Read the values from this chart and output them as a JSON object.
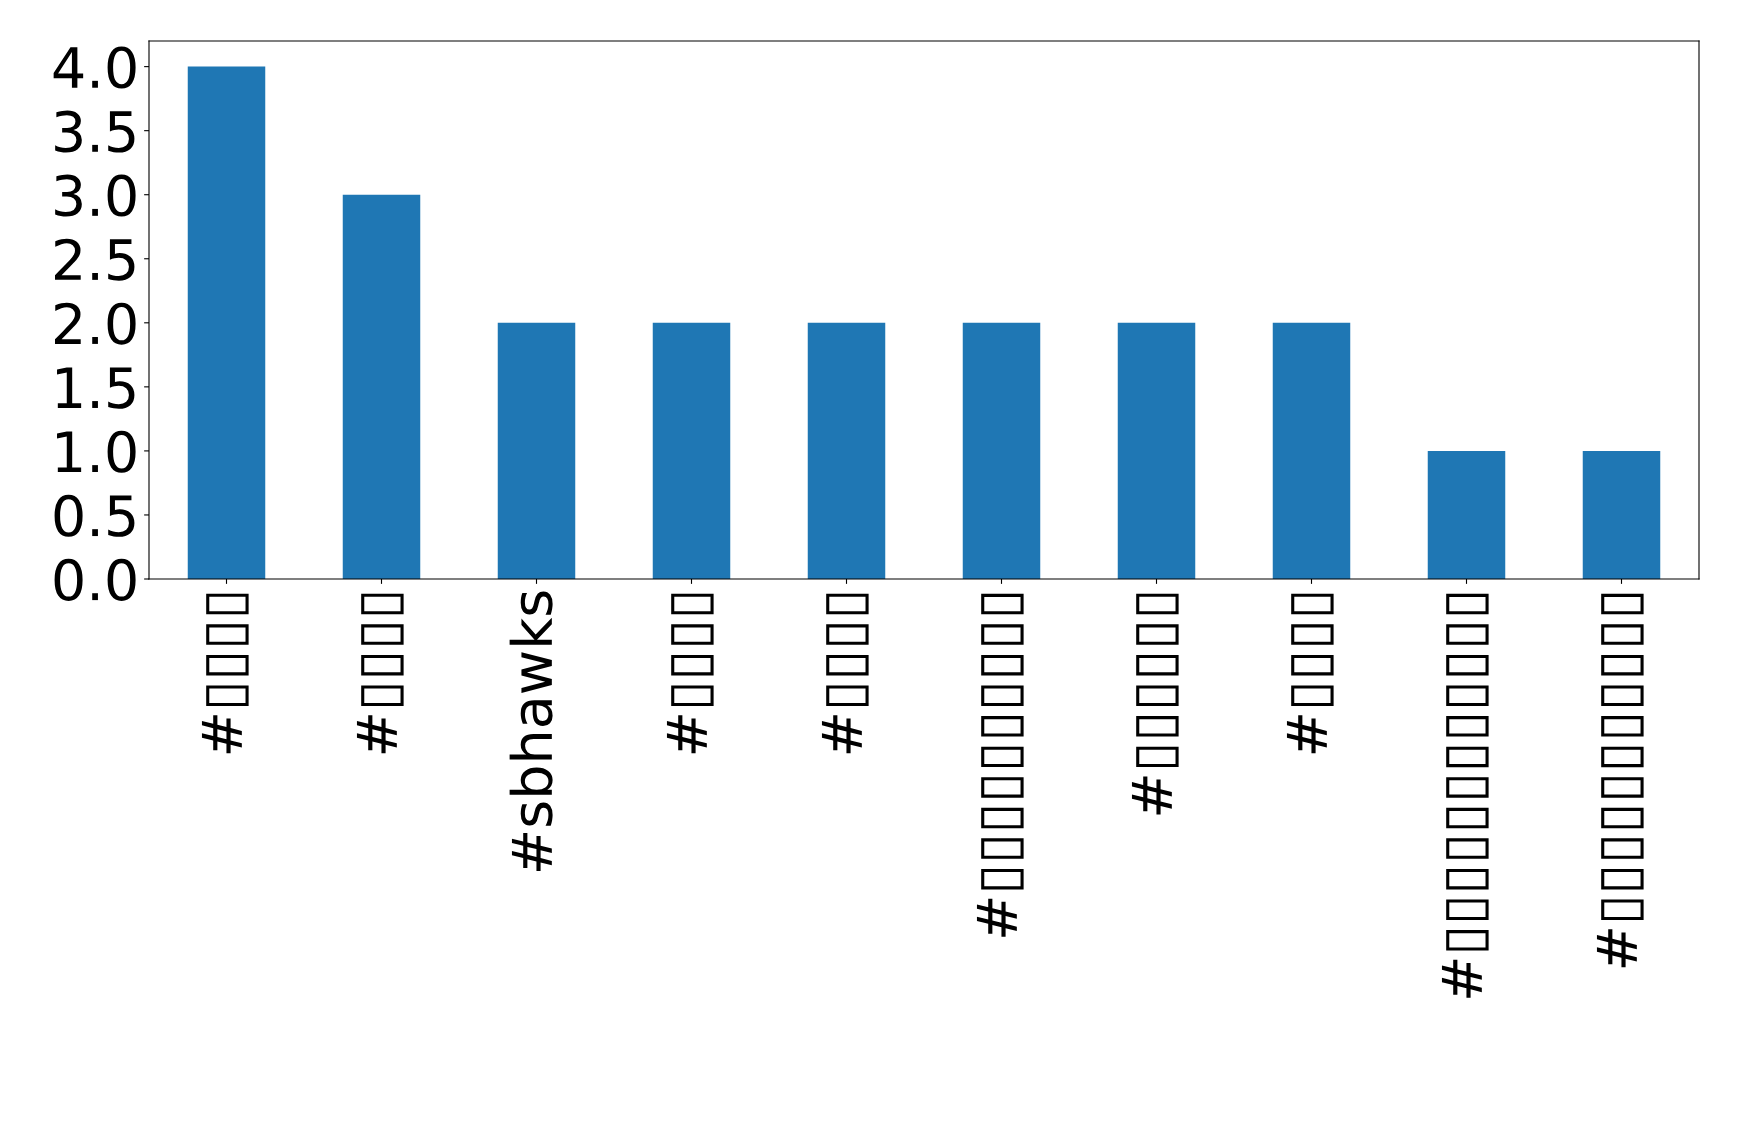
{
  "chart_data": {
    "type": "bar",
    "categories": [
      "#▯▯▯▯",
      "#▯▯▯▯",
      "#sbhawks",
      "#▯▯▯▯",
      "#▯▯▯▯",
      "#▯▯▯▯▯▯▯▯▯▯",
      "#▯▯▯▯▯▯",
      "#▯▯▯▯",
      "#▯▯▯▯▯▯▯▯▯▯▯▯",
      "#▯▯▯▯▯▯▯▯▯▯▯"
    ],
    "values": [
      4,
      3,
      2,
      2,
      2,
      2,
      2,
      2,
      1,
      1
    ],
    "color": "#1f77b4",
    "ylim": [
      0,
      4.2
    ],
    "yticks": [
      {
        "value": 0,
        "label": "0.0"
      },
      {
        "value": 0.5,
        "label": "0.5"
      },
      {
        "value": 1,
        "label": "1.0"
      },
      {
        "value": 1.5,
        "label": "1.5"
      },
      {
        "value": 2,
        "label": "2.0"
      },
      {
        "value": 2.5,
        "label": "2.5"
      },
      {
        "value": 3,
        "label": "3.0"
      },
      {
        "value": 3.5,
        "label": "3.5"
      },
      {
        "value": 4,
        "label": "4.0"
      }
    ],
    "grid": false,
    "legend": false
  }
}
